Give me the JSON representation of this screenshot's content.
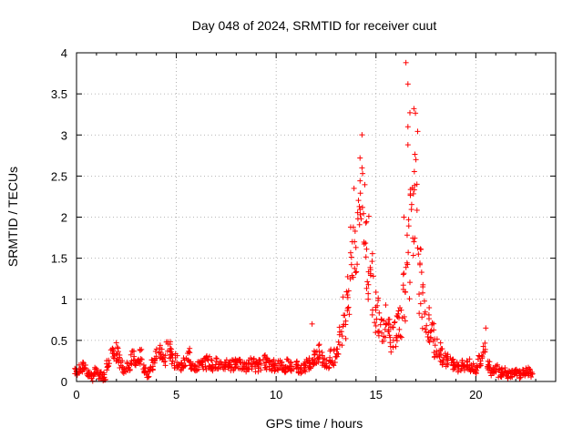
{
  "chart_data": {
    "type": "scatter",
    "title": "Day 048 of 2024, SRMTID for receiver cuut",
    "xlabel": "GPS time / hours",
    "ylabel": "SRMTID / TECUs",
    "xlim": [
      0,
      24
    ],
    "ylim": [
      0,
      4
    ],
    "xticks": [
      0,
      5,
      10,
      15,
      20
    ],
    "yticks": [
      0,
      0.5,
      1,
      1.5,
      2,
      2.5,
      3,
      3.5,
      4
    ],
    "grid": true,
    "legend": "none",
    "marker": "+",
    "series": [
      {
        "name": "SRMTID",
        "color": "#ff0000",
        "x": [
          0.0,
          0.2,
          0.4,
          0.6,
          0.8,
          1.0,
          1.2,
          1.4,
          1.6,
          1.8,
          2.0,
          2.2,
          2.4,
          2.6,
          2.8,
          3.0,
          3.2,
          3.4,
          3.6,
          3.8,
          4.0,
          4.2,
          4.4,
          4.6,
          4.8,
          5.0,
          5.2,
          5.4,
          5.6,
          5.8,
          6.0,
          6.2,
          6.4,
          6.6,
          6.8,
          7.0,
          7.2,
          7.4,
          7.6,
          7.8,
          8.0,
          8.2,
          8.4,
          8.6,
          8.8,
          9.0,
          9.2,
          9.4,
          9.6,
          9.8,
          10.0,
          10.2,
          10.4,
          10.6,
          10.8,
          11.0,
          11.2,
          11.4,
          11.6,
          11.8,
          12.0,
          12.2,
          12.4,
          12.6,
          12.8,
          13.0,
          13.2,
          13.4,
          13.6,
          13.8,
          14.0,
          14.2,
          14.4,
          14.6,
          14.8,
          15.0,
          15.2,
          15.4,
          15.6,
          15.8,
          16.0,
          16.2,
          16.4,
          16.6,
          16.8,
          17.0,
          17.2,
          17.4,
          17.6,
          17.8,
          18.0,
          18.2,
          18.4,
          18.6,
          18.8,
          19.0,
          19.2,
          19.4,
          19.6,
          19.8,
          20.0,
          20.2,
          20.4,
          20.6,
          20.8,
          21.0,
          21.2,
          21.4,
          21.6,
          21.8,
          22.0,
          22.2,
          22.4,
          22.6,
          22.8
        ],
        "y": [
          0.12,
          0.15,
          0.18,
          0.1,
          0.05,
          0.12,
          0.08,
          0.06,
          0.2,
          0.3,
          0.35,
          0.25,
          0.15,
          0.2,
          0.28,
          0.22,
          0.3,
          0.15,
          0.1,
          0.2,
          0.3,
          0.35,
          0.28,
          0.4,
          0.3,
          0.25,
          0.2,
          0.22,
          0.3,
          0.2,
          0.18,
          0.2,
          0.22,
          0.25,
          0.2,
          0.22,
          0.18,
          0.2,
          0.22,
          0.2,
          0.25,
          0.2,
          0.18,
          0.2,
          0.22,
          0.18,
          0.2,
          0.25,
          0.22,
          0.2,
          0.18,
          0.2,
          0.15,
          0.22,
          0.18,
          0.2,
          0.15,
          0.18,
          0.22,
          0.2,
          0.3,
          0.35,
          0.25,
          0.22,
          0.3,
          0.35,
          0.5,
          0.8,
          1.1,
          1.4,
          1.8,
          2.3,
          2.0,
          1.5,
          1.2,
          0.9,
          0.85,
          0.7,
          0.6,
          0.55,
          0.6,
          0.8,
          1.1,
          1.5,
          1.8,
          2.5,
          1.2,
          0.9,
          0.7,
          0.55,
          0.45,
          0.35,
          0.3,
          0.25,
          0.22,
          0.2,
          0.18,
          0.2,
          0.22,
          0.18,
          0.15,
          0.25,
          0.35,
          0.2,
          0.12,
          0.15,
          0.1,
          0.12,
          0.08,
          0.1,
          0.1,
          0.08,
          0.1,
          0.12,
          0.1
        ],
        "spikes": [
          {
            "x": 11.8,
            "y": 0.7
          },
          {
            "x": 13.9,
            "y": 2.35
          },
          {
            "x": 14.2,
            "y": 2.72
          },
          {
            "x": 14.3,
            "y": 2.6
          },
          {
            "x": 16.5,
            "y": 3.88
          },
          {
            "x": 16.6,
            "y": 3.62
          },
          {
            "x": 16.7,
            "y": 3.27
          },
          {
            "x": 16.6,
            "y": 3.1
          },
          {
            "x": 16.9,
            "y": 3.32
          },
          {
            "x": 17.0,
            "y": 2.7
          },
          {
            "x": 17.05,
            "y": 2.4
          },
          {
            "x": 16.6,
            "y": 2.88
          },
          {
            "x": 16.4,
            "y": 2.0
          },
          {
            "x": 16.9,
            "y": 1.7
          },
          {
            "x": 20.5,
            "y": 0.65
          }
        ]
      }
    ]
  }
}
